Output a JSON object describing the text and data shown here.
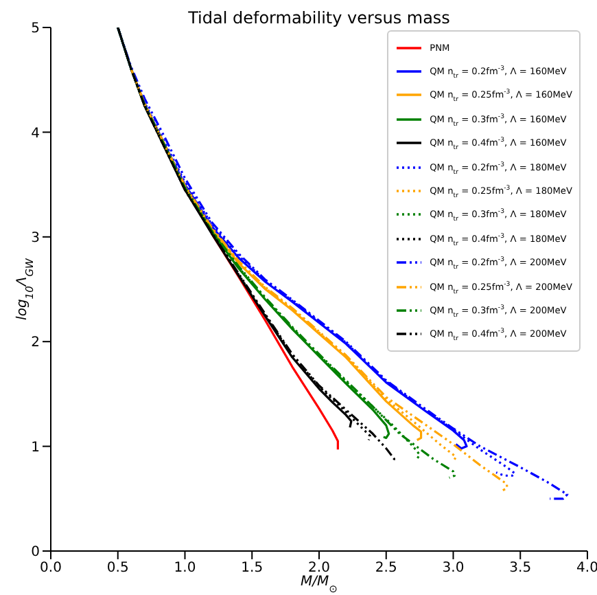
{
  "chart_data": {
    "type": "line",
    "title": "Tidal deformability versus mass",
    "xlabel": "M/M$_{⊙}$",
    "ylabel": "log$_{10}$Λ$_{GW}$",
    "xlim": [
      0,
      4
    ],
    "ylim": [
      0,
      5
    ],
    "xticks": [
      {
        "value": 0,
        "label": "0.0"
      },
      {
        "value": 0.5,
        "label": "0.5"
      },
      {
        "value": 1,
        "label": "1.0"
      },
      {
        "value": 1.5,
        "label": "1.5"
      },
      {
        "value": 2,
        "label": "2.0"
      },
      {
        "value": 2.5,
        "label": "2.5"
      },
      {
        "value": 3,
        "label": "3.0"
      },
      {
        "value": 3.5,
        "label": "3.5"
      },
      {
        "value": 4,
        "label": "4.0"
      }
    ],
    "yticks": [
      0,
      1,
      2,
      3,
      4,
      5
    ],
    "grid": false,
    "legend": "top right",
    "marker": "none",
    "series": [
      {
        "name": "PNM",
        "color": "#ff0000",
        "line_style": "solid",
        "x": [
          1.2,
          1.4,
          1.6,
          1.8,
          2.0,
          2.1,
          2.14,
          2.14
        ],
        "values": [
          3.03,
          2.62,
          2.2,
          1.76,
          1.36,
          1.15,
          1.05,
          0.97
        ]
      },
      {
        "name": "QM n$_{tr}$ = 0.2fm$^{-3}$, Λ = 160MeV",
        "color": "#0000ff",
        "line_style": "solid",
        "x": [
          0.5,
          0.6,
          0.7,
          0.85,
          1.0,
          1.2,
          1.4,
          1.6,
          1.8,
          2.2,
          2.5,
          2.8,
          3.0,
          3.08,
          3.1,
          3.06,
          3.02
        ],
        "values": [
          5,
          4.6,
          4.27,
          3.88,
          3.5,
          3.1,
          2.8,
          2.57,
          2.38,
          1.98,
          1.61,
          1.33,
          1.15,
          1.06,
          1.0,
          0.98,
          1.02
        ]
      },
      {
        "name": "QM n$_{tr}$ = 0.25fm$^{-3}$, Λ = 160MeV",
        "color": "#ffa500",
        "line_style": "solid",
        "x": [
          0.7,
          0.85,
          1.0,
          1.2,
          1.4,
          1.6,
          1.8,
          2.2,
          2.5,
          2.7,
          2.76,
          2.76,
          2.73
        ],
        "values": [
          4.26,
          3.86,
          3.47,
          3.07,
          2.75,
          2.5,
          2.3,
          1.85,
          1.43,
          1.2,
          1.14,
          1.08,
          1.06
        ]
      },
      {
        "name": "QM n$_{tr}$ = 0.3fm$^{-3}$, Λ = 160MeV",
        "color": "#008000",
        "line_style": "solid",
        "x": [
          0.5,
          0.6,
          0.7,
          0.85,
          1.0,
          1.2,
          1.4,
          1.6,
          1.8,
          2.0,
          2.2,
          2.4,
          2.5,
          2.52,
          2.5,
          2.48
        ],
        "values": [
          5,
          4.6,
          4.25,
          3.86,
          3.46,
          3.05,
          2.7,
          2.4,
          2.12,
          1.86,
          1.6,
          1.35,
          1.2,
          1.12,
          1.08,
          1.09
        ]
      },
      {
        "name": "QM n$_{tr}$ = 0.4fm$^{-3}$, Λ = 160MeV",
        "color": "#000000",
        "line_style": "solid",
        "x": [
          0.5,
          0.6,
          0.7,
          0.85,
          1.0,
          1.2,
          1.4,
          1.6,
          1.8,
          2.0,
          2.1,
          2.2,
          2.24,
          2.23
        ],
        "values": [
          5,
          4.6,
          4.25,
          3.85,
          3.45,
          3.03,
          2.63,
          2.24,
          1.85,
          1.55,
          1.42,
          1.3,
          1.24,
          1.18
        ]
      },
      {
        "name": "QM n$_{tr}$ = 0.2fm$^{-3}$, Λ = 180MeV",
        "color": "#0000ff",
        "line_style": "dotted",
        "x": [
          0.5,
          0.6,
          0.7,
          0.85,
          1.0,
          1.2,
          1.4,
          1.6,
          1.8,
          2.2,
          2.5,
          2.8,
          3.0,
          3.2,
          3.4,
          3.46,
          3.44,
          3.38,
          3.32
        ],
        "values": [
          5,
          4.6,
          4.28,
          3.9,
          3.52,
          3.12,
          2.82,
          2.58,
          2.39,
          1.99,
          1.62,
          1.34,
          1.16,
          0.97,
          0.8,
          0.74,
          0.72,
          0.72,
          0.75
        ]
      },
      {
        "name": "QM n$_{tr}$ = 0.25fm$^{-3}$, Λ = 180MeV",
        "color": "#ffa500",
        "line_style": "dotted",
        "x": [
          0.7,
          0.85,
          1.0,
          1.2,
          1.4,
          1.6,
          1.8,
          2.2,
          2.5,
          2.7,
          2.9,
          3.02,
          3.0
        ],
        "values": [
          4.27,
          3.87,
          3.48,
          3.08,
          2.76,
          2.51,
          2.31,
          1.86,
          1.45,
          1.24,
          1.02,
          0.9,
          0.85
        ]
      },
      {
        "name": "QM n$_{tr}$ = 0.3fm$^{-3}$, Λ = 180MeV",
        "color": "#008000",
        "line_style": "dotted",
        "x": [
          0.5,
          0.6,
          0.7,
          0.85,
          1.0,
          1.2,
          1.4,
          1.6,
          1.8,
          2.0,
          2.2,
          2.4,
          2.55,
          2.7,
          2.75,
          2.73
        ],
        "values": [
          5,
          4.6,
          4.26,
          3.87,
          3.47,
          3.06,
          2.71,
          2.41,
          2.13,
          1.87,
          1.62,
          1.38,
          1.2,
          1.0,
          0.92,
          0.88
        ]
      },
      {
        "name": "QM n$_{tr}$ = 0.4fm$^{-3}$, Λ = 180MeV",
        "color": "#000000",
        "line_style": "dotted",
        "x": [
          0.5,
          0.6,
          0.7,
          0.85,
          1.0,
          1.2,
          1.4,
          1.6,
          1.8,
          2.0,
          2.2,
          2.3,
          2.38,
          2.37
        ],
        "values": [
          5,
          4.6,
          4.25,
          3.85,
          3.45,
          3.04,
          2.64,
          2.25,
          1.87,
          1.57,
          1.33,
          1.2,
          1.1,
          1.06
        ]
      },
      {
        "name": "QM n$_{tr}$ = 0.2fm$^{-3}$, Λ = 200MeV",
        "color": "#0000ff",
        "line_style": "dashdot",
        "x": [
          0.5,
          0.6,
          0.7,
          0.85,
          1.0,
          1.2,
          1.4,
          1.6,
          1.8,
          2.2,
          2.5,
          2.8,
          3.0,
          3.2,
          3.5,
          3.7,
          3.85,
          3.82,
          3.72
        ],
        "values": [
          5,
          4.62,
          4.32,
          3.95,
          3.56,
          3.14,
          2.84,
          2.59,
          2.4,
          2.0,
          1.63,
          1.35,
          1.17,
          1.0,
          0.8,
          0.66,
          0.54,
          0.5,
          0.5
        ]
      },
      {
        "name": "QM n$_{tr}$ = 0.25fm$^{-3}$, Λ = 200MeV",
        "color": "#ffa500",
        "line_style": "dashdot",
        "x": [
          0.6,
          0.7,
          0.85,
          1.0,
          1.2,
          1.4,
          1.6,
          1.8,
          2.2,
          2.5,
          2.8,
          3.0,
          3.2,
          3.4,
          3.4,
          3.37
        ],
        "values": [
          4.6,
          4.27,
          3.88,
          3.49,
          3.09,
          2.77,
          2.52,
          2.32,
          1.87,
          1.47,
          1.2,
          1.02,
          0.82,
          0.64,
          0.6,
          0.58
        ]
      },
      {
        "name": "QM n$_{tr}$ = 0.3fm$^{-3}$, Λ = 200MeV",
        "color": "#008000",
        "line_style": "dashdot",
        "x": [
          0.5,
          0.6,
          0.7,
          0.85,
          1.0,
          1.2,
          1.4,
          1.6,
          1.8,
          2.0,
          2.2,
          2.4,
          2.6,
          2.85,
          3.0,
          3.01,
          2.97
        ],
        "values": [
          5,
          4.6,
          4.26,
          3.87,
          3.47,
          3.06,
          2.72,
          2.42,
          2.14,
          1.88,
          1.63,
          1.38,
          1.12,
          0.88,
          0.76,
          0.72,
          0.7
        ]
      },
      {
        "name": "QM n$_{tr}$ = 0.4fm$^{-3}$, Λ = 200MeV",
        "color": "#000000",
        "line_style": "dashdot",
        "x": [
          0.5,
          0.6,
          0.7,
          0.85,
          1.0,
          1.2,
          1.4,
          1.6,
          1.8,
          2.0,
          2.2,
          2.4,
          2.5,
          2.56,
          2.55
        ],
        "values": [
          5,
          4.6,
          4.25,
          3.85,
          3.45,
          3.04,
          2.65,
          2.26,
          1.88,
          1.58,
          1.35,
          1.12,
          0.98,
          0.88,
          0.84
        ]
      }
    ]
  }
}
